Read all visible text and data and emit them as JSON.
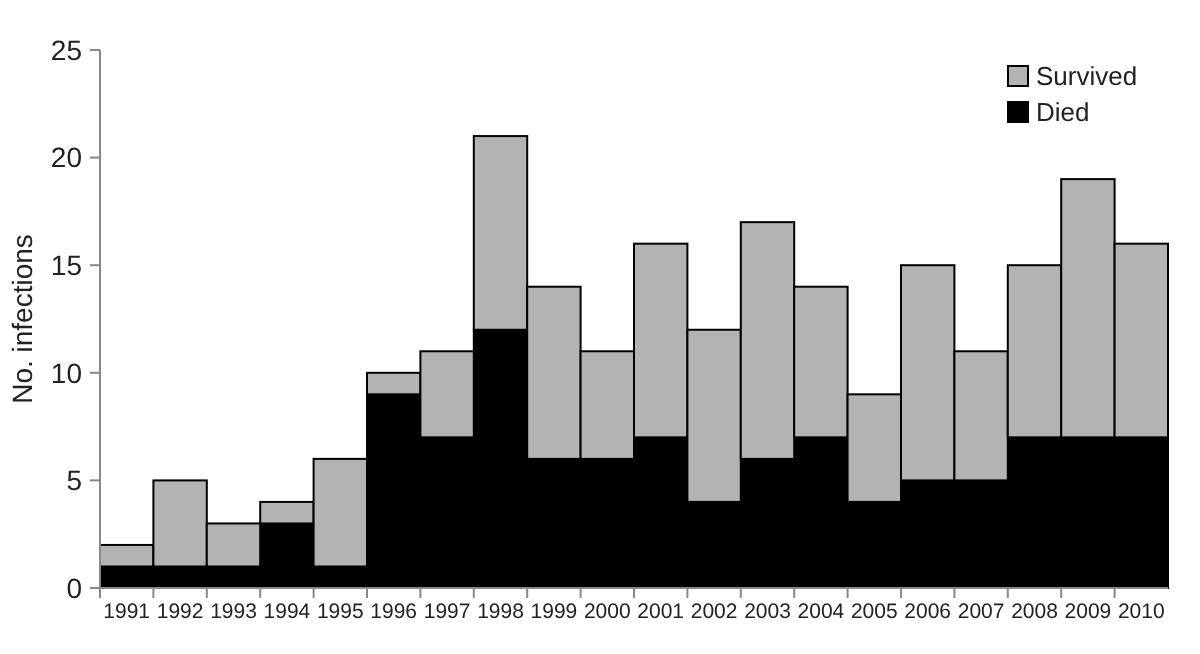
{
  "chart_data": {
    "type": "bar",
    "stacked": true,
    "ylabel": "No. infections",
    "categories": [
      "1991",
      "1992",
      "1993",
      "1994",
      "1995",
      "1996",
      "1997",
      "1998",
      "1999",
      "2000",
      "2001",
      "2002",
      "2003",
      "2004",
      "2005",
      "2006",
      "2007",
      "2008",
      "2009",
      "2010"
    ],
    "series": [
      {
        "name": "Died",
        "color": "#000000",
        "values": [
          1,
          1,
          1,
          3,
          1,
          9,
          7,
          12,
          6,
          6,
          7,
          4,
          6,
          7,
          4,
          5,
          5,
          7,
          7,
          7
        ]
      },
      {
        "name": "Survived",
        "color": "#b3b3b3",
        "values": [
          1,
          4,
          2,
          1,
          5,
          1,
          4,
          9,
          8,
          5,
          9,
          8,
          11,
          7,
          5,
          10,
          6,
          8,
          12,
          9
        ]
      }
    ],
    "ylim": [
      0,
      25
    ],
    "yticks": [
      0,
      5,
      10,
      15,
      20,
      25
    ],
    "grid": false,
    "legend": "top right"
  }
}
